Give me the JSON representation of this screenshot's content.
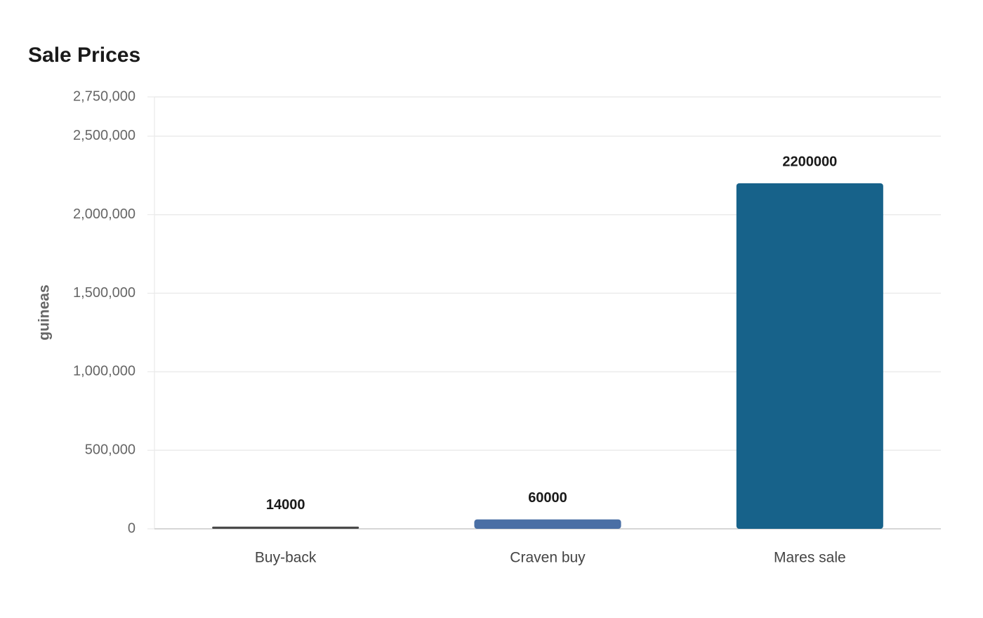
{
  "chart_data": {
    "type": "bar",
    "title": "Sale Prices",
    "y_label": "guineas",
    "categories": [
      "Buy-back",
      "Craven buy",
      "Mares sale"
    ],
    "values": [
      14000,
      60000,
      2200000
    ],
    "colors": [
      "#4a4a4a",
      "#4a6fa5",
      "#17628a"
    ],
    "ylim": [
      0,
      2750000
    ],
    "yticks": [
      0,
      {
        "value": 500000,
        "label": "500,000"
      },
      {
        "value": 1000000,
        "label": "1,000,000"
      },
      {
        "value": 1500000,
        "label": "1,500,000"
      },
      {
        "value": 2000000,
        "label": "2,000,000"
      },
      {
        "value": 2500000,
        "label": "2,500,000"
      },
      {
        "value": 2750000,
        "label": "2,750,000"
      }
    ],
    "grid": true
  }
}
